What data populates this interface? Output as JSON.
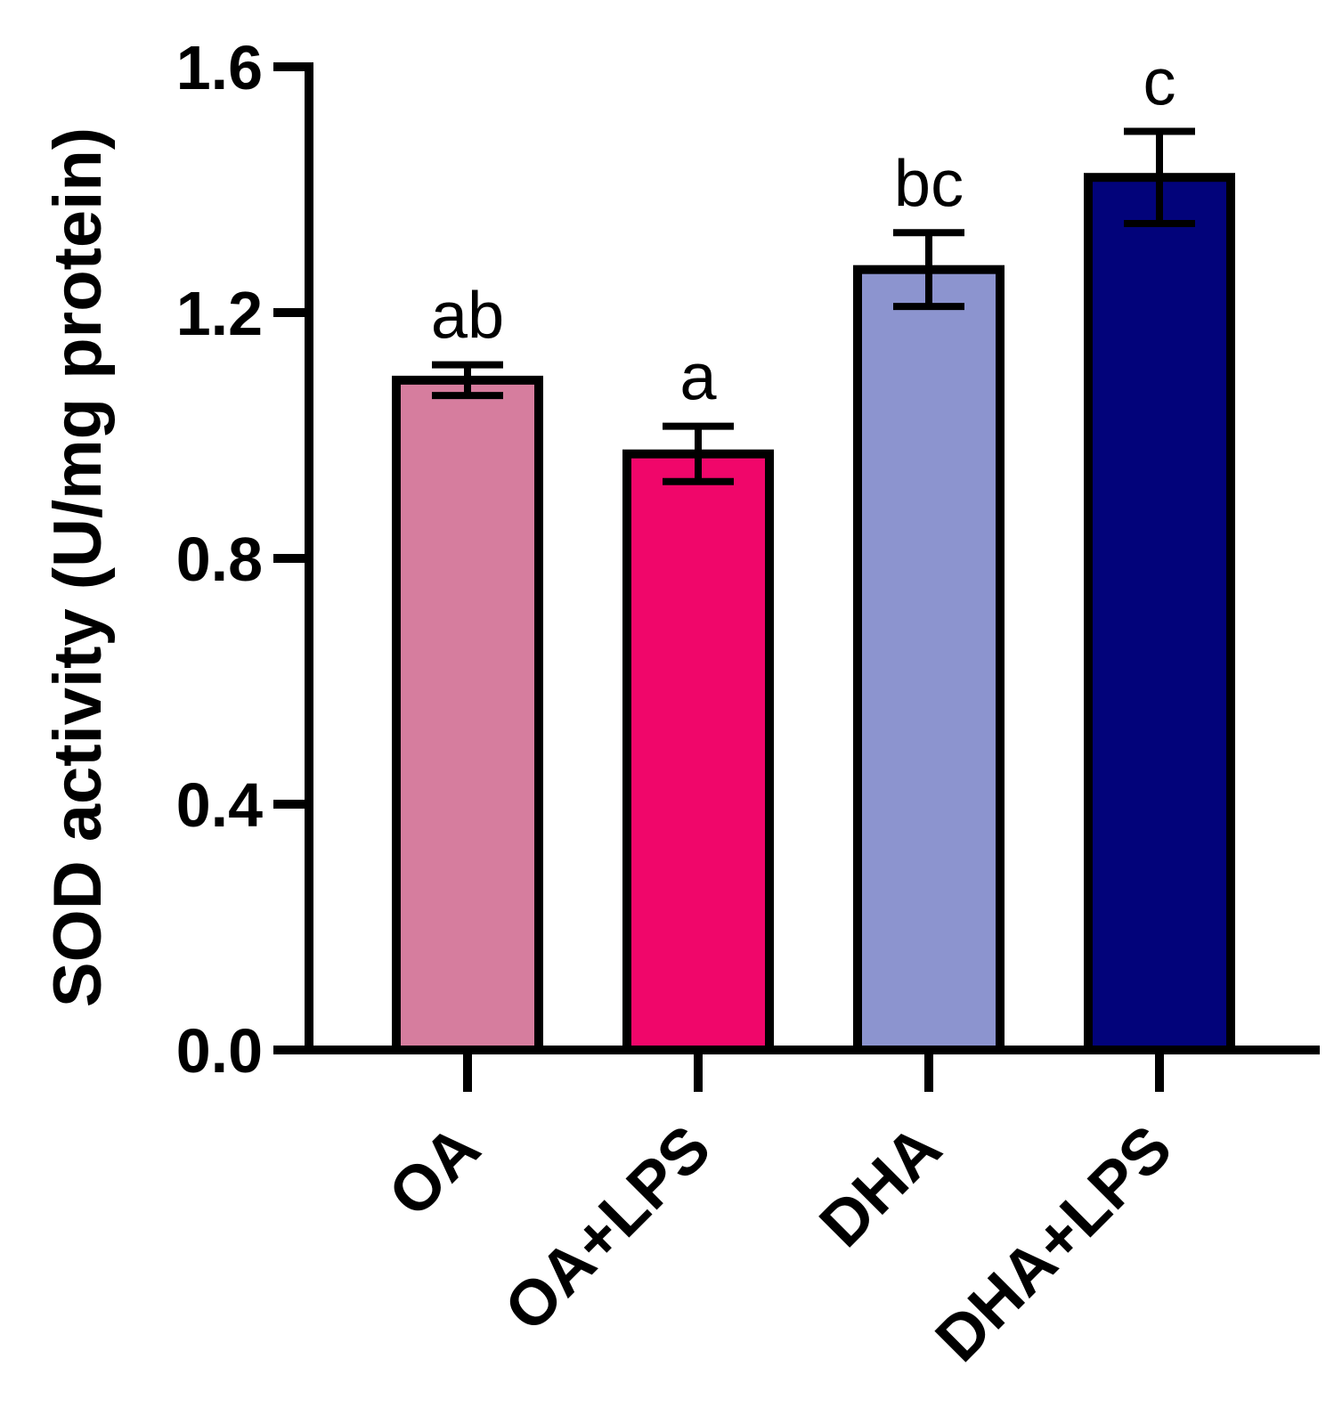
{
  "chart_data": {
    "type": "bar",
    "ylabel": "SOD activity (U/mg protein)",
    "ylim": [
      0,
      1.6
    ],
    "yticks": [
      "0.0",
      "0.4",
      "0.8",
      "1.2",
      "1.6"
    ],
    "yticks_values": [
      0,
      0.4,
      0.8,
      1.2,
      1.6
    ],
    "categories": [
      "OA",
      "OA+LPS",
      "DHA",
      "DHA+LPS"
    ],
    "values": [
      1.09,
      0.97,
      1.27,
      1.42
    ],
    "errors": [
      0.025,
      0.045,
      0.06,
      0.075
    ],
    "significance": [
      "ab",
      "a",
      "bc",
      "c"
    ],
    "colors": [
      "#D67D9E",
      "#F0066A",
      "#8C94CF",
      "#02037A"
    ],
    "grid": false,
    "legend": "none"
  }
}
